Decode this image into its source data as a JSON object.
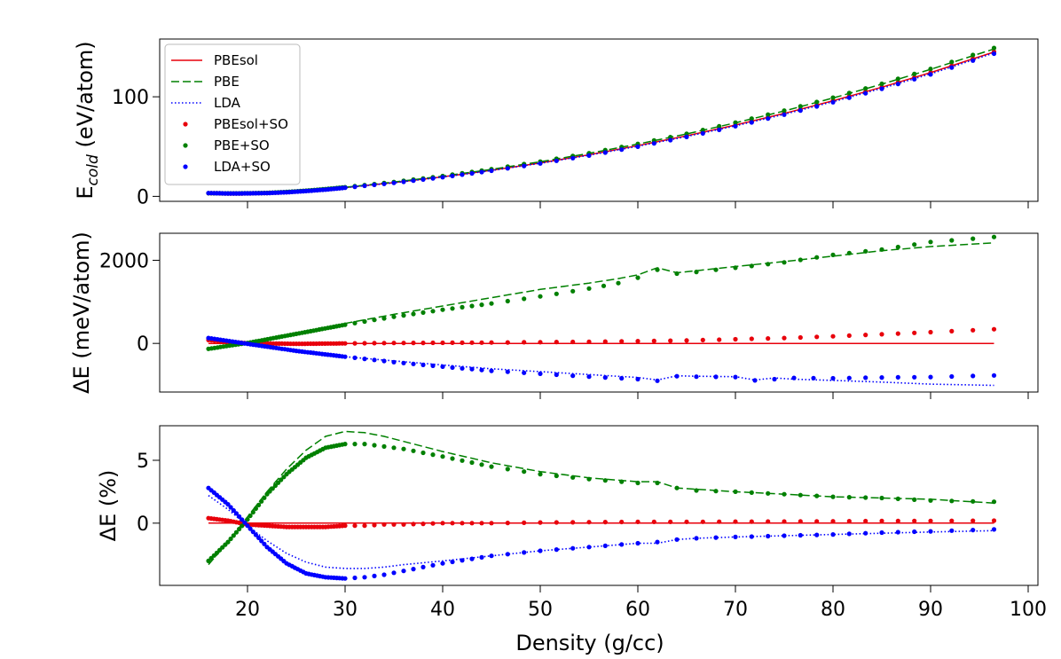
{
  "chart_data": [
    {
      "panel": "top",
      "type": "line",
      "ylabel_main": "E",
      "ylabel_sub": "cold",
      "ylabel_rest": " (eV/atom)",
      "xlim": [
        11,
        101
      ],
      "ylim": [
        -5,
        158
      ],
      "yticks": [
        0,
        100
      ],
      "series": [
        {
          "name": "PBEsol",
          "style": "solid",
          "color": "#e8000b",
          "x": [
            16,
            18,
            20,
            22,
            24,
            26,
            28,
            30,
            35,
            40,
            45,
            50,
            55,
            60,
            65,
            70,
            75,
            80,
            85,
            90,
            96.5
          ],
          "y": [
            3.2,
            2.9,
            3.0,
            3.4,
            4.2,
            5.5,
            7.0,
            8.8,
            13.8,
            19.6,
            26.2,
            33.6,
            41.8,
            50.9,
            60.8,
            71.6,
            83.3,
            96.0,
            109.6,
            124.2,
            145.0
          ]
        },
        {
          "name": "PBE",
          "style": "dashed",
          "color": "#008000",
          "x": [
            16,
            18,
            20,
            22,
            24,
            26,
            28,
            30,
            35,
            40,
            45,
            50,
            55,
            60,
            65,
            70,
            75,
            80,
            85,
            90,
            96.5
          ],
          "y": [
            3.3,
            3.0,
            3.1,
            3.5,
            4.4,
            5.7,
            7.2,
            9.1,
            14.3,
            20.3,
            27.1,
            34.7,
            43.2,
            52.5,
            62.7,
            73.8,
            85.8,
            98.8,
            112.7,
            127.5,
            148.0
          ]
        },
        {
          "name": "LDA",
          "style": "dotted",
          "color": "#0000ff",
          "x": [
            16,
            18,
            20,
            22,
            24,
            26,
            28,
            30,
            35,
            40,
            45,
            50,
            55,
            60,
            65,
            70,
            75,
            80,
            85,
            90,
            96.5
          ],
          "y": [
            3.1,
            2.9,
            3.0,
            3.4,
            4.1,
            5.4,
            6.9,
            8.7,
            13.6,
            19.4,
            25.9,
            33.2,
            41.3,
            50.3,
            60.1,
            70.8,
            82.4,
            95.0,
            108.5,
            123.0,
            144.0
          ]
        },
        {
          "name": "PBEsol+SO",
          "style": "dots",
          "color": "#e8000b",
          "x": [
            16,
            18,
            20,
            22,
            24,
            26,
            28,
            30,
            35,
            40,
            45,
            50,
            55,
            60,
            65,
            70,
            75,
            80,
            85,
            90,
            96.5
          ],
          "y": [
            3.2,
            2.9,
            3.0,
            3.4,
            4.2,
            5.5,
            7.0,
            8.8,
            13.8,
            19.6,
            26.2,
            33.6,
            41.8,
            50.9,
            60.8,
            71.6,
            83.3,
            96.0,
            109.6,
            124.2,
            145.3
          ]
        },
        {
          "name": "PBE+SO",
          "style": "dots",
          "color": "#008000",
          "x": [
            16,
            18,
            20,
            22,
            24,
            26,
            28,
            30,
            35,
            40,
            45,
            50,
            55,
            60,
            65,
            70,
            75,
            80,
            85,
            90,
            96.5
          ],
          "y": [
            3.2,
            3.0,
            3.1,
            3.5,
            4.4,
            5.7,
            7.3,
            9.2,
            14.4,
            20.4,
            27.3,
            34.9,
            43.4,
            52.7,
            62.9,
            74.1,
            86.1,
            99.1,
            113.0,
            128.0,
            149.0
          ]
        },
        {
          "name": "LDA+SO",
          "style": "dots",
          "color": "#0000ff",
          "x": [
            16,
            18,
            20,
            22,
            24,
            26,
            28,
            30,
            35,
            40,
            45,
            50,
            55,
            60,
            65,
            70,
            75,
            80,
            85,
            90,
            96.5
          ],
          "y": [
            3.3,
            2.9,
            3.0,
            3.3,
            4.1,
            5.3,
            6.8,
            8.6,
            13.5,
            19.2,
            25.7,
            33.0,
            41.0,
            49.9,
            59.7,
            70.4,
            82.0,
            94.5,
            108.0,
            122.5,
            143.3
          ]
        }
      ]
    },
    {
      "panel": "middle",
      "type": "line",
      "ylabel": "ΔE (meV/atom)",
      "xlim": [
        11,
        101
      ],
      "ylim": [
        -1170,
        2650
      ],
      "yticks": [
        0,
        2000
      ],
      "series": [
        {
          "name": "PBEsol",
          "style": "solid",
          "color": "#e8000b",
          "x": [
            16,
            20,
            40,
            60,
            80,
            96.5
          ],
          "y": [
            0,
            0,
            0,
            0,
            0,
            0
          ]
        },
        {
          "name": "PBE",
          "style": "dashed",
          "color": "#008000",
          "x": [
            16,
            20,
            25,
            30,
            35,
            40,
            45,
            50,
            55,
            58,
            60,
            62,
            64,
            66,
            70,
            75,
            80,
            85,
            90,
            96.5
          ],
          "y": [
            -120,
            30,
            250,
            480,
            700,
            900,
            1100,
            1300,
            1450,
            1560,
            1650,
            1820,
            1700,
            1750,
            1850,
            1970,
            2100,
            2230,
            2330,
            2420
          ]
        },
        {
          "name": "LDA",
          "style": "dotted",
          "color": "#0000ff",
          "x": [
            16,
            20,
            25,
            30,
            35,
            40,
            45,
            50,
            55,
            60,
            62,
            64,
            66,
            70,
            72,
            74,
            76,
            80,
            85,
            90,
            96.5
          ],
          "y": [
            130,
            -20,
            -170,
            -320,
            -420,
            -520,
            -610,
            -680,
            -750,
            -820,
            -880,
            -780,
            -790,
            -800,
            -880,
            -830,
            -860,
            -890,
            -930,
            -980,
            -1010
          ]
        },
        {
          "name": "PBEsol+SO",
          "style": "dots",
          "color": "#e8000b",
          "x": [
            16,
            20,
            25,
            30,
            35,
            40,
            45,
            50,
            55,
            60,
            65,
            70,
            75,
            80,
            85,
            90,
            96.5
          ],
          "y": [
            80,
            5,
            -10,
            0,
            10,
            15,
            20,
            30,
            40,
            55,
            70,
            100,
            130,
            170,
            220,
            270,
            340
          ]
        },
        {
          "name": "PBE+SO",
          "style": "dots",
          "color": "#008000",
          "x": [
            16,
            20,
            25,
            30,
            35,
            40,
            45,
            50,
            55,
            58,
            60,
            62,
            64,
            66,
            70,
            75,
            80,
            85,
            90,
            96.5
          ],
          "y": [
            -130,
            10,
            230,
            450,
            640,
            810,
            960,
            1130,
            1320,
            1450,
            1580,
            1770,
            1680,
            1720,
            1820,
            1950,
            2130,
            2260,
            2440,
            2560
          ]
        },
        {
          "name": "LDA+SO",
          "style": "dots",
          "color": "#0000ff",
          "x": [
            16,
            20,
            25,
            30,
            35,
            40,
            45,
            50,
            55,
            60,
            62,
            64,
            66,
            70,
            72,
            74,
            76,
            80,
            85,
            90,
            96.5
          ],
          "y": [
            130,
            -10,
            -180,
            -320,
            -450,
            -560,
            -660,
            -730,
            -800,
            -860,
            -900,
            -790,
            -800,
            -810,
            -890,
            -860,
            -830,
            -840,
            -820,
            -810,
            -770
          ]
        }
      ]
    },
    {
      "panel": "bottom",
      "type": "line",
      "ylabel": "ΔE (%)",
      "xlabel": "Density (g/cc)",
      "xlim": [
        11,
        101
      ],
      "ylim": [
        -4.95,
        7.75
      ],
      "yticks": [
        0,
        5
      ],
      "xticks": [
        20,
        30,
        40,
        50,
        60,
        70,
        80,
        90,
        100
      ],
      "series": [
        {
          "name": "PBEsol",
          "style": "solid",
          "color": "#e8000b",
          "x": [
            16,
            96.5
          ],
          "y": [
            0,
            0
          ]
        },
        {
          "name": "PBE",
          "style": "dashed",
          "color": "#008000",
          "x": [
            16,
            18,
            20,
            22,
            24,
            26,
            28,
            30,
            32,
            34,
            36,
            40,
            45,
            50,
            55,
            60,
            62,
            64,
            66,
            70,
            75,
            80,
            85,
            90,
            96.5
          ],
          "y": [
            -3.3,
            -1.5,
            0.5,
            2.5,
            4.3,
            5.8,
            6.9,
            7.3,
            7.2,
            6.9,
            6.5,
            5.7,
            4.8,
            4.1,
            3.6,
            3.3,
            3.3,
            2.8,
            2.7,
            2.5,
            2.3,
            2.1,
            2.0,
            1.9,
            1.6
          ]
        },
        {
          "name": "LDA",
          "style": "dotted",
          "color": "#0000ff",
          "x": [
            16,
            18,
            20,
            22,
            24,
            26,
            28,
            30,
            32,
            34,
            36,
            40,
            45,
            50,
            55,
            60,
            62,
            64,
            66,
            70,
            75,
            80,
            85,
            90,
            96.5
          ],
          "y": [
            2.2,
            1.1,
            -0.2,
            -1.4,
            -2.4,
            -3.1,
            -3.5,
            -3.6,
            -3.6,
            -3.5,
            -3.3,
            -3.0,
            -2.6,
            -2.2,
            -1.9,
            -1.6,
            -1.6,
            -1.3,
            -1.2,
            -1.1,
            -1.0,
            -0.9,
            -0.8,
            -0.7,
            -0.6
          ]
        },
        {
          "name": "PBEsol+SO",
          "style": "dots",
          "color": "#e8000b",
          "x": [
            16,
            18,
            20,
            22,
            24,
            26,
            28,
            30,
            32,
            34,
            36,
            40,
            45,
            50,
            55,
            60,
            65,
            70,
            75,
            80,
            85,
            90,
            96.5
          ],
          "y": [
            0.4,
            0.2,
            -0.1,
            -0.2,
            -0.3,
            -0.3,
            -0.3,
            -0.2,
            -0.2,
            -0.1,
            -0.1,
            0.0,
            0.0,
            0.05,
            0.08,
            0.1,
            0.1,
            0.12,
            0.13,
            0.15,
            0.17,
            0.18,
            0.2
          ]
        },
        {
          "name": "PBE+SO",
          "style": "dots",
          "color": "#008000",
          "x": [
            16,
            18,
            20,
            22,
            24,
            26,
            28,
            30,
            32,
            34,
            36,
            40,
            45,
            50,
            55,
            60,
            62,
            64,
            66,
            70,
            75,
            80,
            85,
            90,
            96.5
          ],
          "y": [
            -3.0,
            -1.5,
            0.3,
            2.3,
            3.9,
            5.2,
            6.0,
            6.3,
            6.3,
            6.1,
            5.9,
            5.3,
            4.5,
            3.9,
            3.5,
            3.2,
            3.2,
            2.8,
            2.6,
            2.5,
            2.3,
            2.1,
            2.0,
            1.8,
            1.7
          ]
        },
        {
          "name": "LDA+SO",
          "style": "dots",
          "color": "#0000ff",
          "x": [
            16,
            18,
            20,
            22,
            24,
            26,
            28,
            30,
            32,
            34,
            36,
            40,
            45,
            50,
            55,
            60,
            62,
            64,
            66,
            70,
            75,
            80,
            85,
            90,
            96.5
          ],
          "y": [
            2.8,
            1.5,
            -0.2,
            -1.9,
            -3.2,
            -4.0,
            -4.3,
            -4.4,
            -4.3,
            -4.1,
            -3.8,
            -3.2,
            -2.6,
            -2.2,
            -1.9,
            -1.6,
            -1.5,
            -1.3,
            -1.2,
            -1.1,
            -1.0,
            -0.9,
            -0.75,
            -0.65,
            -0.5
          ]
        }
      ]
    }
  ],
  "legend": [
    {
      "label": "PBEsol",
      "style": "solid",
      "color": "#e8000b"
    },
    {
      "label": "PBE",
      "style": "dashed",
      "color": "#008000"
    },
    {
      "label": "LDA",
      "style": "dotted",
      "color": "#0000ff"
    },
    {
      "label": "PBEsol+SO",
      "style": "dots",
      "color": "#e8000b"
    },
    {
      "label": "PBE+SO",
      "style": "dots",
      "color": "#008000"
    },
    {
      "label": "LDA+SO",
      "style": "dots",
      "color": "#0000ff"
    }
  ]
}
